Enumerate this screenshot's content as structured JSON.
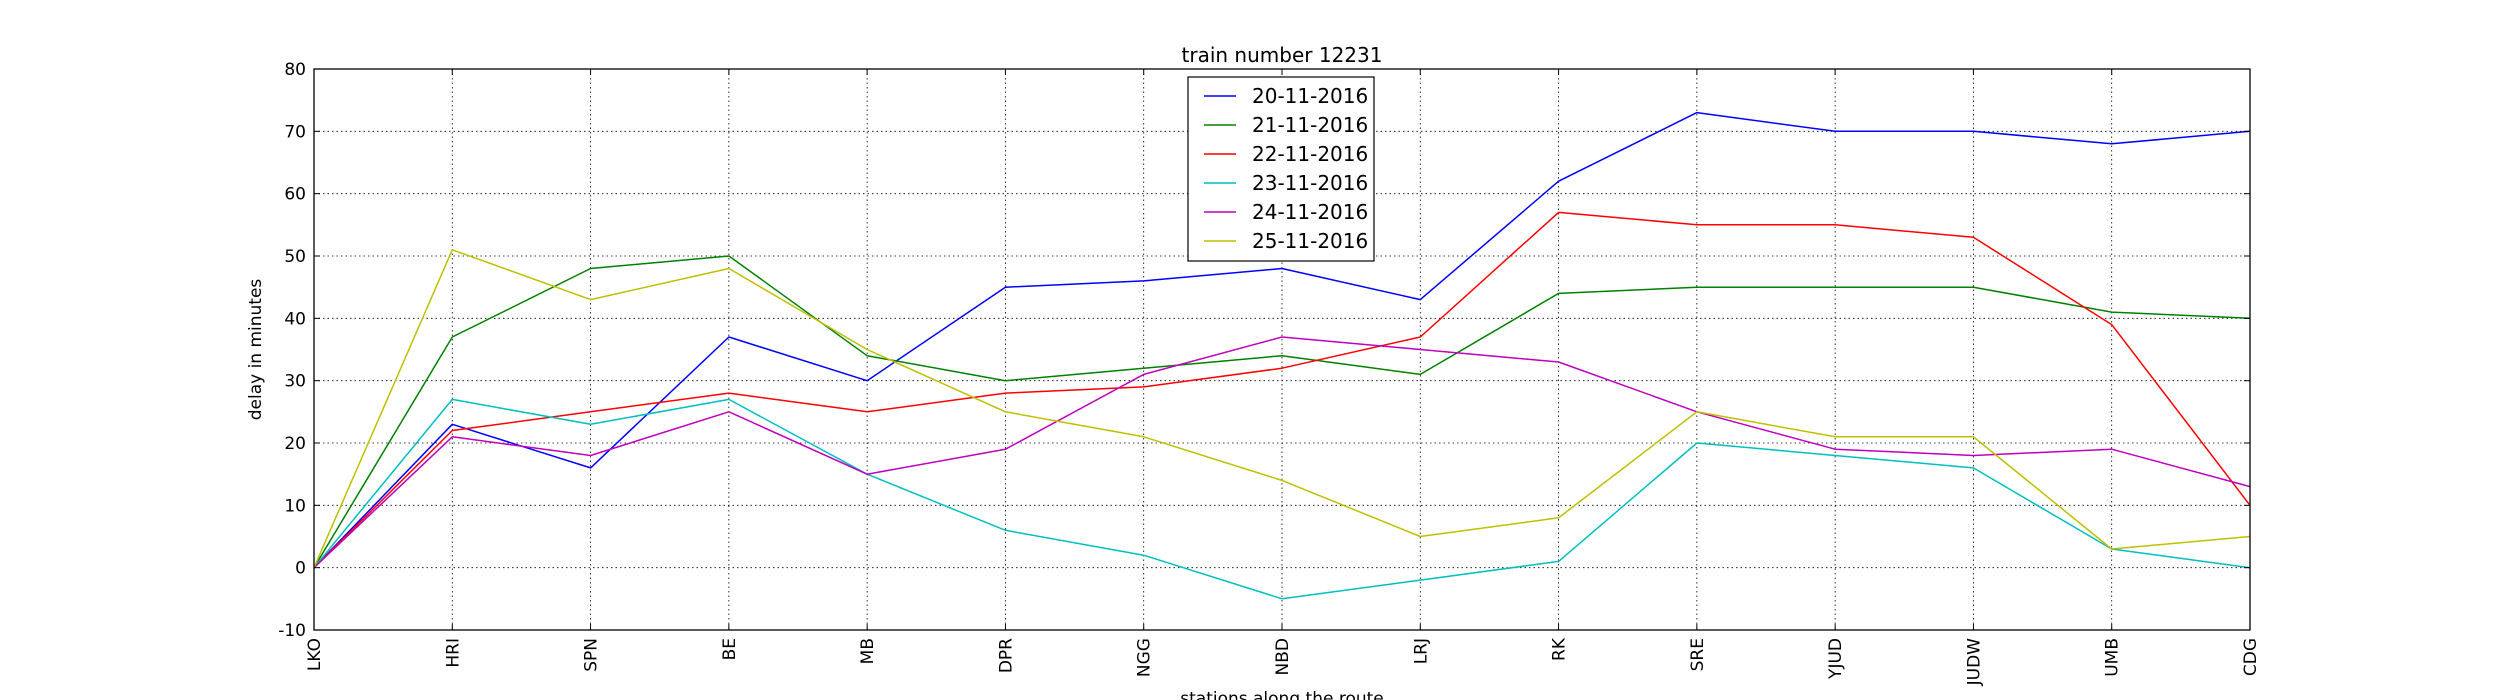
{
  "chart_data": {
    "type": "line",
    "title": "train number 12231",
    "xlabel": "stations along the route",
    "ylabel": "delay in minutes",
    "categories": [
      "LKO",
      "HRI",
      "SPN",
      "BE",
      "MB",
      "DPR",
      "NGG",
      "NBD",
      "LRJ",
      "RK",
      "SRE",
      "YJUD",
      "JUDW",
      "UMB",
      "CDG"
    ],
    "ylim": [
      -10,
      80
    ],
    "yticks": [
      -10,
      0,
      10,
      20,
      30,
      40,
      50,
      60,
      70,
      80
    ],
    "grid": true,
    "legend_position": "top-center",
    "series": [
      {
        "name": "20-11-2016",
        "color": "#0000ff",
        "values": [
          0,
          23,
          16,
          37,
          30,
          45,
          46,
          48,
          43,
          62,
          73,
          70,
          70,
          68,
          70
        ]
      },
      {
        "name": "21-11-2016",
        "color": "#008000",
        "values": [
          0,
          37,
          48,
          50,
          34,
          30,
          32,
          34,
          31,
          44,
          45,
          45,
          45,
          41,
          40
        ]
      },
      {
        "name": "22-11-2016",
        "color": "#ff0000",
        "values": [
          0,
          22,
          25,
          28,
          25,
          28,
          29,
          32,
          37,
          57,
          55,
          55,
          53,
          39,
          10
        ]
      },
      {
        "name": "23-11-2016",
        "color": "#00bfbf",
        "values": [
          0,
          27,
          23,
          27,
          15,
          6,
          2,
          -5,
          -2,
          1,
          20,
          18,
          16,
          3,
          0
        ]
      },
      {
        "name": "24-11-2016",
        "color": "#bf00bf",
        "values": [
          0,
          21,
          18,
          25,
          15,
          19,
          31,
          37,
          35,
          33,
          25,
          19,
          18,
          19,
          13
        ]
      },
      {
        "name": "25-11-2016",
        "color": "#bfbf00",
        "values": [
          0,
          51,
          43,
          48,
          35,
          25,
          21,
          14,
          5,
          8,
          25,
          21,
          21,
          3,
          5
        ]
      }
    ]
  }
}
